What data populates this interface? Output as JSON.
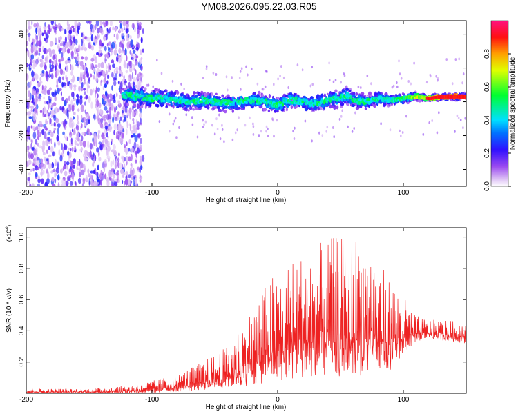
{
  "title": "YM08.2026.095.22.03.R05",
  "colors": {
    "snr_line": "#ee2222",
    "frame": "#000000"
  },
  "colorbar": {
    "label": "Normalized spectral amplitude",
    "ticks": [
      "0.0",
      "0.2",
      "0.4",
      "0.6",
      "0.8"
    ],
    "tick_values": [
      0.0,
      0.2,
      0.4,
      0.6,
      0.8
    ],
    "range": [
      0,
      1
    ]
  },
  "chart_data": [
    {
      "type": "heatmap",
      "name": "spectrogram",
      "xlabel": "Height of straight line (km)",
      "ylabel": "Frequency (Hz)",
      "xlim": [
        -200,
        150
      ],
      "ylim": [
        -50,
        48
      ],
      "xticks": [
        -200,
        -100,
        0,
        100
      ],
      "xtick_labels": [
        "-200",
        "-100",
        "0",
        "100"
      ],
      "yticks": [
        -40,
        -20,
        0,
        20,
        40
      ],
      "ytick_labels": [
        "-40",
        "-20",
        "0",
        "20",
        "40"
      ],
      "colorscale": "normalized spectral amplitude 0-1 (white/violet → blue → cyan → green → yellow → red → magenta)",
      "band_center_hz": [
        [
          -120,
          4
        ],
        [
          -110,
          3
        ],
        [
          -100,
          2
        ],
        [
          -90,
          2
        ],
        [
          -80,
          1
        ],
        [
          -70,
          0
        ],
        [
          -60,
          1
        ],
        [
          -50,
          0
        ],
        [
          -40,
          -1
        ],
        [
          -30,
          0
        ],
        [
          -20,
          1
        ],
        [
          -10,
          0
        ],
        [
          0,
          -2
        ],
        [
          10,
          1
        ],
        [
          20,
          0
        ],
        [
          30,
          -1
        ],
        [
          40,
          1
        ],
        [
          50,
          2
        ],
        [
          55,
          4
        ],
        [
          60,
          1
        ],
        [
          70,
          0
        ],
        [
          80,
          2
        ],
        [
          90,
          1
        ],
        [
          100,
          2
        ],
        [
          110,
          3
        ],
        [
          120,
          2
        ],
        [
          130,
          3
        ],
        [
          150,
          3
        ]
      ],
      "band_halfwidth_hz": [
        [
          -120,
          6
        ],
        [
          -60,
          5
        ],
        [
          0,
          5
        ],
        [
          60,
          5
        ],
        [
          100,
          3
        ],
        [
          120,
          2
        ],
        [
          150,
          2
        ]
      ],
      "noise_region_km": [
        -200,
        -115
      ]
    },
    {
      "type": "line",
      "name": "snr",
      "xlabel": "Height of straight line (km)",
      "ylabel": "SNR (10 * v/v)",
      "y_multiplier": "(x10^4)",
      "y_multiplier_base": "(x10",
      "y_multiplier_exp": "4",
      "y_multiplier_close": ")",
      "xlim": [
        -200,
        150
      ],
      "ylim": [
        0,
        1.06
      ],
      "xticks": [
        -200,
        -100,
        0,
        100
      ],
      "xtick_labels": [
        "-200",
        "-100",
        "0",
        "100"
      ],
      "yticks": [
        0.2,
        0.4,
        0.6,
        0.8,
        1.0
      ],
      "ytick_labels": [
        "0.2",
        "0.4",
        "0.6",
        "0.8",
        "1.0"
      ],
      "envelope_upper": [
        [
          -200,
          0.03
        ],
        [
          -150,
          0.03
        ],
        [
          -120,
          0.05
        ],
        [
          -100,
          0.08
        ],
        [
          -80,
          0.12
        ],
        [
          -60,
          0.2
        ],
        [
          -40,
          0.3
        ],
        [
          -20,
          0.55
        ],
        [
          -5,
          0.75
        ],
        [
          10,
          0.85
        ],
        [
          30,
          0.95
        ],
        [
          50,
          1.02
        ],
        [
          60,
          1.03
        ],
        [
          75,
          0.92
        ],
        [
          90,
          0.72
        ],
        [
          100,
          0.62
        ],
        [
          110,
          0.5
        ],
        [
          120,
          0.47
        ],
        [
          135,
          0.47
        ],
        [
          150,
          0.45
        ]
      ],
      "envelope_lower": [
        [
          -200,
          0.0
        ],
        [
          -100,
          0.0
        ],
        [
          -60,
          0.02
        ],
        [
          -20,
          0.05
        ],
        [
          0,
          0.08
        ],
        [
          30,
          0.1
        ],
        [
          60,
          0.1
        ],
        [
          90,
          0.15
        ],
        [
          100,
          0.25
        ],
        [
          110,
          0.33
        ],
        [
          120,
          0.35
        ],
        [
          150,
          0.32
        ]
      ]
    }
  ]
}
